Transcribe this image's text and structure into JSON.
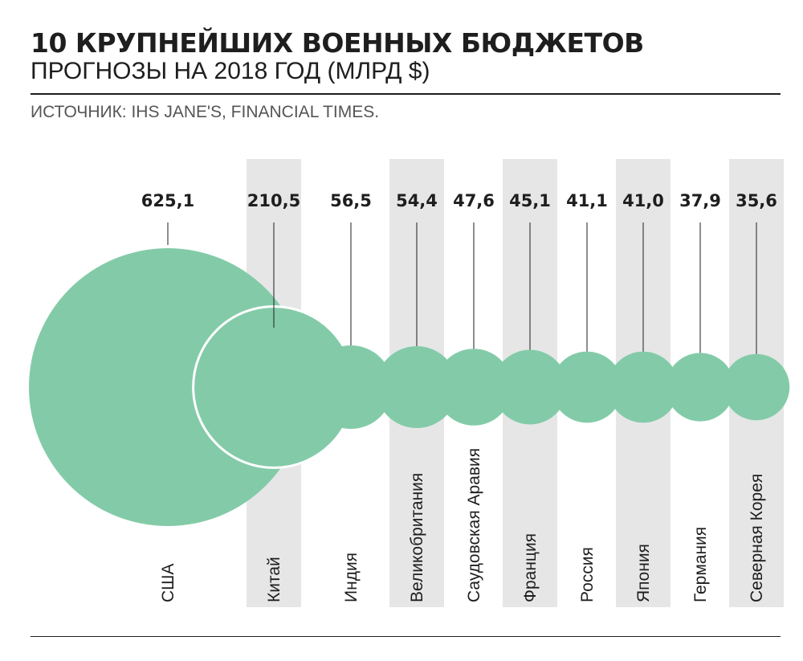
{
  "header": {
    "title": "10 КРУПНЕЙШИХ ВОЕННЫХ БЮДЖЕТОВ",
    "subtitle": "ПРОГНОЗЫ НА 2018 ГОД (МЛРД $)",
    "source": "ИСТОЧНИК: IHS JANE'S, FINANCIAL TIMES."
  },
  "colors": {
    "bubble": "#83cba8",
    "band": "#e6e6e7",
    "text": "#1e1e1e",
    "leader": "#1e1e1e"
  },
  "chart_data": {
    "type": "bubble",
    "title": "10 КРУПНЕЙШИХ ВОЕННЫХ БЮДЖЕТОВ",
    "subtitle": "ПРОГНОЗЫ НА 2018 ГОД (МЛРД $)",
    "unit": "МЛРД $",
    "categories": [
      "США",
      "Китай",
      "Индия",
      "Великобритания",
      "Саудовская Аравия",
      "Франция",
      "Россия",
      "Япония",
      "Германия",
      "Северная Корея"
    ],
    "values": [
      625.1,
      210.5,
      56.5,
      54.4,
      47.6,
      45.1,
      41.1,
      41.0,
      37.9,
      35.6
    ],
    "value_labels": [
      "625,1",
      "210,5",
      "56,5",
      "54,4",
      "47,6",
      "45,1",
      "41,1",
      "41,0",
      "37,9",
      "35,6"
    ],
    "alternating_bands": true,
    "legend": "none",
    "grid": false
  }
}
